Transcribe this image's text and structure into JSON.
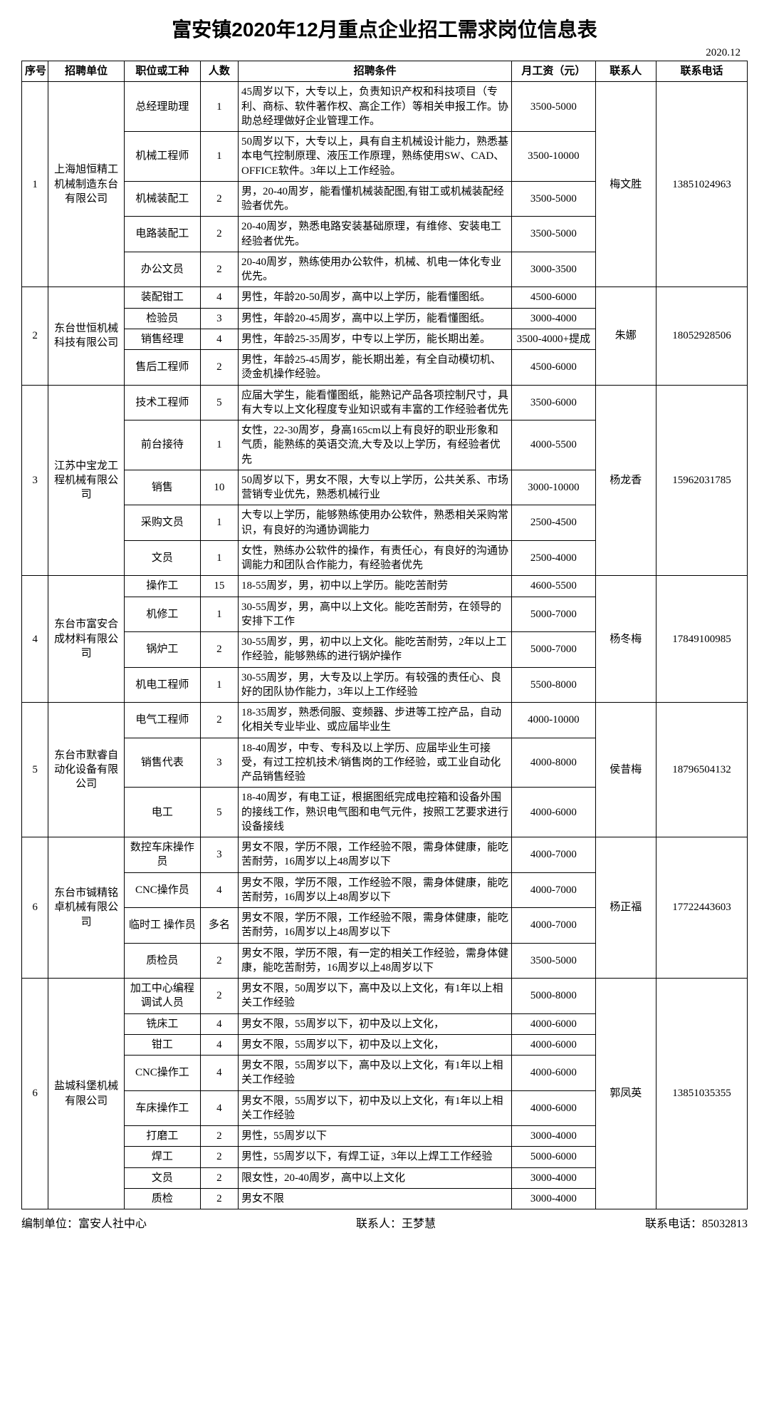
{
  "title": "富安镇2020年12月重点企业招工需求岗位信息表",
  "date": "2020.12",
  "headers": {
    "idx": "序号",
    "company": "招聘单位",
    "position": "职位或工种",
    "count": "人数",
    "requirement": "招聘条件",
    "salary": "月工资（元）",
    "contact": "联系人",
    "phone": "联系电话"
  },
  "companies": [
    {
      "idx": "1",
      "name": "上海旭恒精工机械制造东台有限公司",
      "contact": "梅文胜",
      "phone": "13851024963",
      "jobs": [
        {
          "pos": "总经理助理",
          "num": "1",
          "req": "45周岁以下，大专以上，负责知识产权和科技项目（专利、商标、软件著作权、高企工作）等相关申报工作。协助总经理做好企业管理工作。",
          "sal": "3500-5000"
        },
        {
          "pos": "机械工程师",
          "num": "1",
          "req": "50周岁以下，大专以上，具有自主机械设计能力，熟悉基本电气控制原理、液压工作原理，熟练使用SW、CAD、OFFICE软件。3年以上工作经验。",
          "sal": "3500-10000"
        },
        {
          "pos": "机械装配工",
          "num": "2",
          "req": "男，20-40周岁，能看懂机械装配图,有钳工或机械装配经验者优先。",
          "sal": "3500-5000"
        },
        {
          "pos": "电路装配工",
          "num": "2",
          "req": "20-40周岁，熟悉电路安装基础原理，有维修、安装电工经验者优先。",
          "sal": "3500-5000"
        },
        {
          "pos": "办公文员",
          "num": "2",
          "req": "20-40周岁，熟练使用办公软件，机械、机电一体化专业优先。",
          "sal": "3000-3500"
        }
      ]
    },
    {
      "idx": "2",
      "name": "东台世恒机械科技有限公司",
      "contact": "朱娜",
      "phone": "18052928506",
      "jobs": [
        {
          "pos": "装配钳工",
          "num": "4",
          "req": "男性，年龄20-50周岁，高中以上学历，能看懂图纸。",
          "sal": "4500-6000"
        },
        {
          "pos": "检验员",
          "num": "3",
          "req": "男性，年龄20-45周岁，高中以上学历，能看懂图纸。",
          "sal": "3000-4000"
        },
        {
          "pos": "销售经理",
          "num": "4",
          "req": "男性，年龄25-35周岁，中专以上学历，能长期出差。",
          "sal": "3500-4000+提成"
        },
        {
          "pos": "售后工程师",
          "num": "2",
          "req": "男性，年龄25-45周岁，能长期出差，有全自动模切机、烫金机操作经验。",
          "sal": "4500-6000"
        }
      ]
    },
    {
      "idx": "3",
      "name": "江苏中宝龙工程机械有限公司",
      "contact": "杨龙香",
      "phone": "15962031785",
      "jobs": [
        {
          "pos": "技术工程师",
          "num": "5",
          "req": "应届大学生，能看懂图纸，能熟记产品各项控制尺寸，具有大专以上文化程度专业知识或有丰富的工作经验者优先",
          "sal": "3500-6000"
        },
        {
          "pos": "前台接待",
          "num": "1",
          "req": "女性，22-30周岁，身高165cm以上有良好的职业形象和气质，能熟练的英语交流,大专及以上学历，有经验者优先",
          "sal": "4000-5500"
        },
        {
          "pos": "销售",
          "num": "10",
          "req": "50周岁以下，男女不限，大专以上学历，公共关系、市场营销专业优先，熟悉机械行业",
          "sal": "3000-10000"
        },
        {
          "pos": "采购文员",
          "num": "1",
          "req": "大专以上学历，能够熟练使用办公软件，熟悉相关采购常识，有良好的沟通协调能力",
          "sal": "2500-4500"
        },
        {
          "pos": "文员",
          "num": "1",
          "req": "女性，熟练办公软件的操作，有责任心，有良好的沟通协调能力和团队合作能力，有经验者优先",
          "sal": "2500-4000"
        }
      ]
    },
    {
      "idx": "4",
      "name": "东台市富安合成材料有限公司",
      "contact": "杨冬梅",
      "phone": "17849100985",
      "jobs": [
        {
          "pos": "操作工",
          "num": "15",
          "req": "18-55周岁，男，初中以上学历。能吃苦耐劳",
          "sal": "4600-5500"
        },
        {
          "pos": "机修工",
          "num": "1",
          "req": "30-55周岁，男，高中以上文化。能吃苦耐劳，在领导的安排下工作",
          "sal": "5000-7000"
        },
        {
          "pos": "锅炉工",
          "num": "2",
          "req": "30-55周岁，男，初中以上文化。能吃苦耐劳，2年以上工作经验，能够熟练的进行锅炉操作",
          "sal": "5000-7000"
        },
        {
          "pos": "机电工程师",
          "num": "1",
          "req": "30-55周岁，男，大专及以上学历。有较强的责任心、良好的团队协作能力，3年以上工作经验",
          "sal": "5500-8000"
        }
      ]
    },
    {
      "idx": "5",
      "name": "东台市默睿自动化设备有限公司",
      "contact": "侯昔梅",
      "phone": "18796504132",
      "jobs": [
        {
          "pos": "电气工程师",
          "num": "2",
          "req": "18-35周岁，熟悉伺服、变频器、步进等工控产品，自动化相关专业毕业、或应届毕业生",
          "sal": "4000-10000"
        },
        {
          "pos": "销售代表",
          "num": "3",
          "req": "18-40周岁，中专、专科及以上学历、应届毕业生可接受，有过工控机技术/销售岗的工作经验，或工业自动化产品销售经验",
          "sal": "4000-8000"
        },
        {
          "pos": "电工",
          "num": "5",
          "req": "18-40周岁，有电工证，根据图纸完成电控箱和设备外围的接线工作，熟识电气图和电气元件，按照工艺要求进行设备接线",
          "sal": "4000-6000"
        }
      ]
    },
    {
      "idx": "6",
      "name": "东台市铖精铭卓机械有限公司",
      "contact": "杨正福",
      "phone": "17722443603",
      "jobs": [
        {
          "pos": "数控车床操作员",
          "num": "3",
          "req": "男女不限，学历不限，工作经验不限，需身体健康，能吃苦耐劳，16周岁以上48周岁以下",
          "sal": "4000-7000"
        },
        {
          "pos": "CNC操作员",
          "num": "4",
          "req": "男女不限，学历不限，工作经验不限，需身体健康，能吃苦耐劳，16周岁以上48周岁以下",
          "sal": "4000-7000"
        },
        {
          "pos": "临时工 操作员",
          "num": "多名",
          "req": "男女不限，学历不限，工作经验不限，需身体健康，能吃苦耐劳，16周岁以上48周岁以下",
          "sal": "4000-7000"
        },
        {
          "pos": "质检员",
          "num": "2",
          "req": "男女不限，学历不限，有一定的相关工作经验，需身体健康，能吃苦耐劳，16周岁以上48周岁以下",
          "sal": "3500-5000"
        }
      ]
    },
    {
      "idx": "6",
      "name": "盐城科堡机械有限公司",
      "contact": "郭凤英",
      "phone": "13851035355",
      "jobs": [
        {
          "pos": "加工中心编程调试人员",
          "num": "2",
          "req": "男女不限，50周岁以下，高中及以上文化，有1年以上相关工作经验",
          "sal": "5000-8000"
        },
        {
          "pos": "铣床工",
          "num": "4",
          "req": "男女不限，55周岁以下，初中及以上文化，",
          "sal": "4000-6000"
        },
        {
          "pos": "钳工",
          "num": "4",
          "req": "男女不限，55周岁以下，初中及以上文化，",
          "sal": "4000-6000"
        },
        {
          "pos": "CNC操作工",
          "num": "4",
          "req": "男女不限，55周岁以下，高中及以上文化，有1年以上相关工作经验",
          "sal": "4000-6000"
        },
        {
          "pos": "车床操作工",
          "num": "4",
          "req": "男女不限，55周岁以下，初中及以上文化，有1年以上相关工作经验",
          "sal": "4000-6000"
        },
        {
          "pos": "打磨工",
          "num": "2",
          "req": "男性，55周岁以下",
          "sal": "3000-4000"
        },
        {
          "pos": "焊工",
          "num": "2",
          "req": "男性，55周岁以下，有焊工证，3年以上焊工工作经验",
          "sal": "5000-6000"
        },
        {
          "pos": "文员",
          "num": "2",
          "req": "限女性，20-40周岁，高中以上文化",
          "sal": "3000-4000"
        },
        {
          "pos": "质检",
          "num": "2",
          "req": "男女不限",
          "sal": "3000-4000"
        }
      ]
    }
  ],
  "footer": {
    "org_label": "编制单位：",
    "org": "富安人社中心",
    "contact_label": "联系人：",
    "contact": "王梦慧",
    "phone_label": "联系电话：",
    "phone": "85032813"
  }
}
